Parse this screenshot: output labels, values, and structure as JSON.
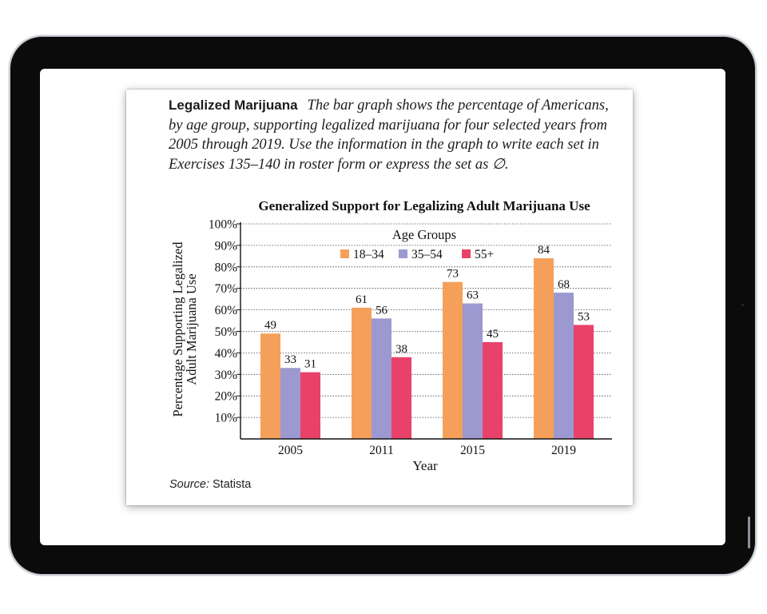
{
  "intro": {
    "lead": "Legalized Marijuana",
    "body": "The bar graph shows the percentage of Americans, by age group, supporting legalized marijuana for four selected years from 2005 through 2019. Use the information in the graph to write each set in Exercises 135–140 in roster form or express the set as ∅."
  },
  "source": {
    "label": "Source:",
    "name": "Statista"
  },
  "colors": {
    "s1": "#f5a05a",
    "s2": "#9c98d0",
    "s3": "#e8426a"
  },
  "chart_data": {
    "type": "bar",
    "title": "Generalized Support for Legalizing Adult Marijuana Use",
    "xlabel": "Year",
    "ylabel_lines": [
      "Percentage Supporting Legalized",
      "Adult Marijuana Use"
    ],
    "categories": [
      "2005",
      "2011",
      "2015",
      "2019"
    ],
    "yticks": [
      "10%",
      "20%",
      "30%",
      "40%",
      "50%",
      "60%",
      "70%",
      "80%",
      "90%",
      "100%"
    ],
    "ylim": [
      0,
      100
    ],
    "legend_title": "Age Groups",
    "series": [
      {
        "name": "18–34",
        "values": [
          49,
          61,
          73,
          84
        ]
      },
      {
        "name": "35–54",
        "values": [
          33,
          56,
          63,
          68
        ]
      },
      {
        "name": "55+",
        "values": [
          31,
          38,
          45,
          53
        ]
      }
    ]
  }
}
